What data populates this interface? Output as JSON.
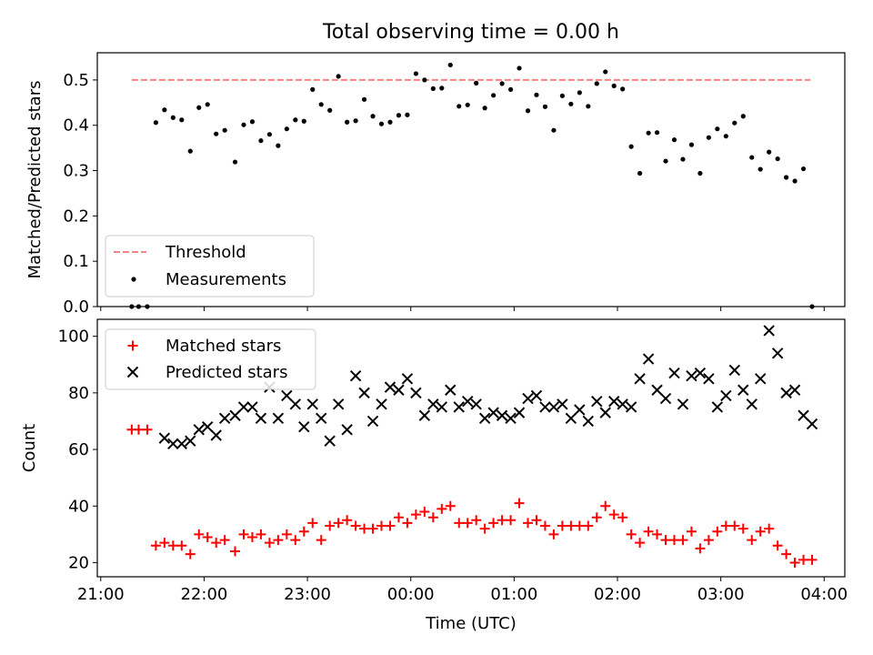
{
  "figure": {
    "title": "Total observing time = 0.00 h"
  },
  "chart_data": [
    {
      "type": "scatter",
      "panel": "top",
      "title": "Total observing time = 0.00 h",
      "xlabel": "",
      "ylabel": "Matched/Predicted stars",
      "xlim": [
        "2021-01-01T20:58",
        "2021-01-02T04:12"
      ],
      "ylim": [
        0,
        0.56
      ],
      "yticks": [
        0.0,
        0.1,
        0.2,
        0.3,
        0.4,
        0.5
      ],
      "ytick_labels": [
        "0.0",
        "0.1",
        "0.2",
        "0.3",
        "0.4",
        "0.5"
      ],
      "xticks": [
        "2021-01-01T21:00",
        "2021-01-01T22:00",
        "2021-01-01T23:00",
        "2021-01-02T00:00",
        "2021-01-02T01:00",
        "2021-01-02T02:00",
        "2021-01-02T03:00",
        "2021-01-02T04:00"
      ],
      "legend_position": "lower-left",
      "series": [
        {
          "name": "Threshold",
          "kind": "dashed-line",
          "color": "#ff8080",
          "x": [
            "2021-01-01T21:18",
            "2021-01-02T03:52"
          ],
          "y": [
            0.5,
            0.5
          ]
        },
        {
          "name": "Measurements",
          "kind": "points",
          "color": "#000000",
          "x": [
            "2021-01-01T21:18",
            "2021-01-01T21:22",
            "2021-01-01T21:27",
            "2021-01-01T21:32",
            "2021-01-01T21:37",
            "2021-01-01T21:42",
            "2021-01-01T21:47",
            "2021-01-01T21:52",
            "2021-01-01T21:57",
            "2021-01-01T22:02",
            "2021-01-01T22:07",
            "2021-01-01T22:12",
            "2021-01-01T22:18",
            "2021-01-01T22:23",
            "2021-01-01T22:28",
            "2021-01-01T22:33",
            "2021-01-01T22:38",
            "2021-01-01T22:43",
            "2021-01-01T22:48",
            "2021-01-01T22:53",
            "2021-01-01T22:58",
            "2021-01-01T23:03",
            "2021-01-01T23:08",
            "2021-01-01T23:13",
            "2021-01-01T23:18",
            "2021-01-01T23:23",
            "2021-01-01T23:28",
            "2021-01-01T23:33",
            "2021-01-01T23:38",
            "2021-01-01T23:43",
            "2021-01-01T23:48",
            "2021-01-01T23:53",
            "2021-01-01T23:58",
            "2021-01-02T00:03",
            "2021-01-02T00:08",
            "2021-01-02T00:13",
            "2021-01-02T00:18",
            "2021-01-02T00:23",
            "2021-01-02T00:28",
            "2021-01-02T00:33",
            "2021-01-02T00:38",
            "2021-01-02T00:43",
            "2021-01-02T00:48",
            "2021-01-02T00:53",
            "2021-01-02T00:58",
            "2021-01-02T01:03",
            "2021-01-02T01:08",
            "2021-01-02T01:13",
            "2021-01-02T01:18",
            "2021-01-02T01:23",
            "2021-01-02T01:28",
            "2021-01-02T01:33",
            "2021-01-02T01:38",
            "2021-01-02T01:43",
            "2021-01-02T01:48",
            "2021-01-02T01:53",
            "2021-01-02T01:58",
            "2021-01-02T02:03",
            "2021-01-02T02:08",
            "2021-01-02T02:13",
            "2021-01-02T02:18",
            "2021-01-02T02:23",
            "2021-01-02T02:28",
            "2021-01-02T02:33",
            "2021-01-02T02:38",
            "2021-01-02T02:43",
            "2021-01-02T02:48",
            "2021-01-02T02:53",
            "2021-01-02T02:58",
            "2021-01-02T03:03",
            "2021-01-02T03:08",
            "2021-01-02T03:13",
            "2021-01-02T03:18",
            "2021-01-02T03:23",
            "2021-01-02T03:28",
            "2021-01-02T03:33",
            "2021-01-02T03:38",
            "2021-01-02T03:43",
            "2021-01-02T03:48",
            "2021-01-02T03:53"
          ],
          "y": [
            0.0,
            0.0,
            0.0,
            0.406,
            0.434,
            0.417,
            0.412,
            0.343,
            0.439,
            0.446,
            0.381,
            0.389,
            0.319,
            0.401,
            0.408,
            0.366,
            0.38,
            0.355,
            0.392,
            0.412,
            0.409,
            0.479,
            0.446,
            0.433,
            0.508,
            0.407,
            0.41,
            0.457,
            0.42,
            0.403,
            0.407,
            0.422,
            0.423,
            0.514,
            0.5,
            0.481,
            0.482,
            0.533,
            0.442,
            0.445,
            0.493,
            0.438,
            0.466,
            0.492,
            0.479,
            0.526,
            0.432,
            0.467,
            0.441,
            0.389,
            0.465,
            0.447,
            0.472,
            0.442,
            0.492,
            0.518,
            0.487,
            0.48,
            0.353,
            0.294,
            0.383,
            0.384,
            0.321,
            0.368,
            0.325,
            0.357,
            0.294,
            0.373,
            0.392,
            0.376,
            0.405,
            0.42,
            0.329,
            0.303,
            0.341,
            0.326,
            0.285,
            0.277,
            0.304,
            0.0
          ]
        }
      ]
    },
    {
      "type": "scatter",
      "panel": "bottom",
      "title": "",
      "xlabel": "Time (UTC)",
      "ylabel": "Count",
      "xlim": [
        "2021-01-01T20:58",
        "2021-01-02T04:12"
      ],
      "ylim": [
        15,
        106
      ],
      "yticks": [
        20,
        40,
        60,
        80,
        100
      ],
      "ytick_labels": [
        "20",
        "40",
        "60",
        "80",
        "100"
      ],
      "xticks": [
        "2021-01-01T21:00",
        "2021-01-01T22:00",
        "2021-01-01T23:00",
        "2021-01-02T00:00",
        "2021-01-02T01:00",
        "2021-01-02T02:00",
        "2021-01-02T03:00",
        "2021-01-02T04:00"
      ],
      "xtick_labels": [
        "21:00",
        "22:00",
        "23:00",
        "00:00",
        "01:00",
        "02:00",
        "03:00",
        "04:00"
      ],
      "legend_position": "upper-left",
      "series": [
        {
          "name": "Matched stars",
          "marker": "plus",
          "color": "#ff0000",
          "x": [
            "2021-01-01T21:18",
            "2021-01-01T21:22",
            "2021-01-01T21:27",
            "2021-01-01T21:32",
            "2021-01-01T21:37",
            "2021-01-01T21:42",
            "2021-01-01T21:47",
            "2021-01-01T21:52",
            "2021-01-01T21:57",
            "2021-01-01T22:02",
            "2021-01-01T22:07",
            "2021-01-01T22:12",
            "2021-01-01T22:18",
            "2021-01-01T22:23",
            "2021-01-01T22:28",
            "2021-01-01T22:33",
            "2021-01-01T22:38",
            "2021-01-01T22:43",
            "2021-01-01T22:48",
            "2021-01-01T22:53",
            "2021-01-01T22:58",
            "2021-01-01T23:03",
            "2021-01-01T23:08",
            "2021-01-01T23:13",
            "2021-01-01T23:18",
            "2021-01-01T23:23",
            "2021-01-01T23:28",
            "2021-01-01T23:33",
            "2021-01-01T23:38",
            "2021-01-01T23:43",
            "2021-01-01T23:48",
            "2021-01-01T23:53",
            "2021-01-01T23:58",
            "2021-01-02T00:03",
            "2021-01-02T00:08",
            "2021-01-02T00:13",
            "2021-01-02T00:18",
            "2021-01-02T00:23",
            "2021-01-02T00:28",
            "2021-01-02T00:33",
            "2021-01-02T00:38",
            "2021-01-02T00:43",
            "2021-01-02T00:48",
            "2021-01-02T00:53",
            "2021-01-02T00:58",
            "2021-01-02T01:03",
            "2021-01-02T01:08",
            "2021-01-02T01:13",
            "2021-01-02T01:18",
            "2021-01-02T01:23",
            "2021-01-02T01:28",
            "2021-01-02T01:33",
            "2021-01-02T01:38",
            "2021-01-02T01:43",
            "2021-01-02T01:48",
            "2021-01-02T01:53",
            "2021-01-02T01:58",
            "2021-01-02T02:03",
            "2021-01-02T02:08",
            "2021-01-02T02:13",
            "2021-01-02T02:18",
            "2021-01-02T02:23",
            "2021-01-02T02:28",
            "2021-01-02T02:33",
            "2021-01-02T02:38",
            "2021-01-02T02:43",
            "2021-01-02T02:48",
            "2021-01-02T02:53",
            "2021-01-02T02:58",
            "2021-01-02T03:03",
            "2021-01-02T03:08",
            "2021-01-02T03:13",
            "2021-01-02T03:18",
            "2021-01-02T03:23",
            "2021-01-02T03:28",
            "2021-01-02T03:33",
            "2021-01-02T03:38",
            "2021-01-02T03:43",
            "2021-01-02T03:48",
            "2021-01-02T03:53"
          ],
          "y": [
            67,
            67,
            67,
            26,
            27,
            26,
            26,
            23,
            30,
            29,
            27,
            28,
            24,
            30,
            29,
            30,
            27,
            28,
            30,
            28,
            31,
            34,
            28,
            33,
            34,
            35,
            33,
            32,
            32,
            33,
            33,
            36,
            34,
            37,
            38,
            36,
            39,
            40,
            34,
            34,
            35,
            32,
            34,
            35,
            35,
            41,
            34,
            35,
            33,
            30,
            33,
            33,
            33,
            33,
            36,
            40,
            37,
            36,
            30,
            27,
            31,
            30,
            28,
            28,
            28,
            31,
            25,
            28,
            31,
            33,
            33,
            32,
            28,
            31,
            32,
            26,
            23,
            20,
            21,
            21
          ]
        },
        {
          "name": "Predicted stars",
          "marker": "x",
          "color": "#000000",
          "x": [
            "2021-01-01T21:37",
            "2021-01-01T21:42",
            "2021-01-01T21:47",
            "2021-01-01T21:52",
            "2021-01-01T21:57",
            "2021-01-01T22:02",
            "2021-01-01T22:07",
            "2021-01-01T22:12",
            "2021-01-01T22:18",
            "2021-01-01T22:23",
            "2021-01-01T22:28",
            "2021-01-01T22:33",
            "2021-01-01T22:38",
            "2021-01-01T22:43",
            "2021-01-01T22:48",
            "2021-01-01T22:53",
            "2021-01-01T22:58",
            "2021-01-01T23:03",
            "2021-01-01T23:08",
            "2021-01-01T23:13",
            "2021-01-01T23:18",
            "2021-01-01T23:23",
            "2021-01-01T23:28",
            "2021-01-01T23:33",
            "2021-01-01T23:38",
            "2021-01-01T23:43",
            "2021-01-01T23:48",
            "2021-01-01T23:53",
            "2021-01-01T23:58",
            "2021-01-02T00:03",
            "2021-01-02T00:08",
            "2021-01-02T00:13",
            "2021-01-02T00:18",
            "2021-01-02T00:23",
            "2021-01-02T00:28",
            "2021-01-02T00:33",
            "2021-01-02T00:38",
            "2021-01-02T00:43",
            "2021-01-02T00:48",
            "2021-01-02T00:53",
            "2021-01-02T00:58",
            "2021-01-02T01:03",
            "2021-01-02T01:08",
            "2021-01-02T01:13",
            "2021-01-02T01:18",
            "2021-01-02T01:23",
            "2021-01-02T01:28",
            "2021-01-02T01:33",
            "2021-01-02T01:38",
            "2021-01-02T01:43",
            "2021-01-02T01:48",
            "2021-01-02T01:53",
            "2021-01-02T01:58",
            "2021-01-02T02:03",
            "2021-01-02T02:08",
            "2021-01-02T02:13",
            "2021-01-02T02:18",
            "2021-01-02T02:23",
            "2021-01-02T02:28",
            "2021-01-02T02:33",
            "2021-01-02T02:38",
            "2021-01-02T02:43",
            "2021-01-02T02:48",
            "2021-01-02T02:53",
            "2021-01-02T02:58",
            "2021-01-02T03:03",
            "2021-01-02T03:08",
            "2021-01-02T03:13",
            "2021-01-02T03:18",
            "2021-01-02T03:23",
            "2021-01-02T03:28",
            "2021-01-02T03:33",
            "2021-01-02T03:38",
            "2021-01-02T03:43",
            "2021-01-02T03:48",
            "2021-01-02T03:53"
          ],
          "y": [
            64,
            62,
            62,
            63,
            67,
            68,
            65,
            71,
            72,
            75,
            75,
            71,
            82,
            71,
            79,
            76,
            68,
            76,
            71,
            63,
            76,
            67,
            86,
            80,
            70,
            76,
            82,
            81,
            85,
            80,
            72,
            76,
            75,
            81,
            75,
            77,
            76,
            71,
            73,
            72,
            71,
            73,
            78,
            79,
            75,
            75,
            76,
            71,
            74,
            70,
            77,
            73,
            77,
            76,
            75,
            85,
            92,
            81,
            78,
            87,
            76,
            86,
            87,
            85,
            75,
            79,
            88,
            81,
            76,
            85,
            102,
            94,
            80,
            81,
            72,
            69
          ]
        }
      ]
    }
  ]
}
